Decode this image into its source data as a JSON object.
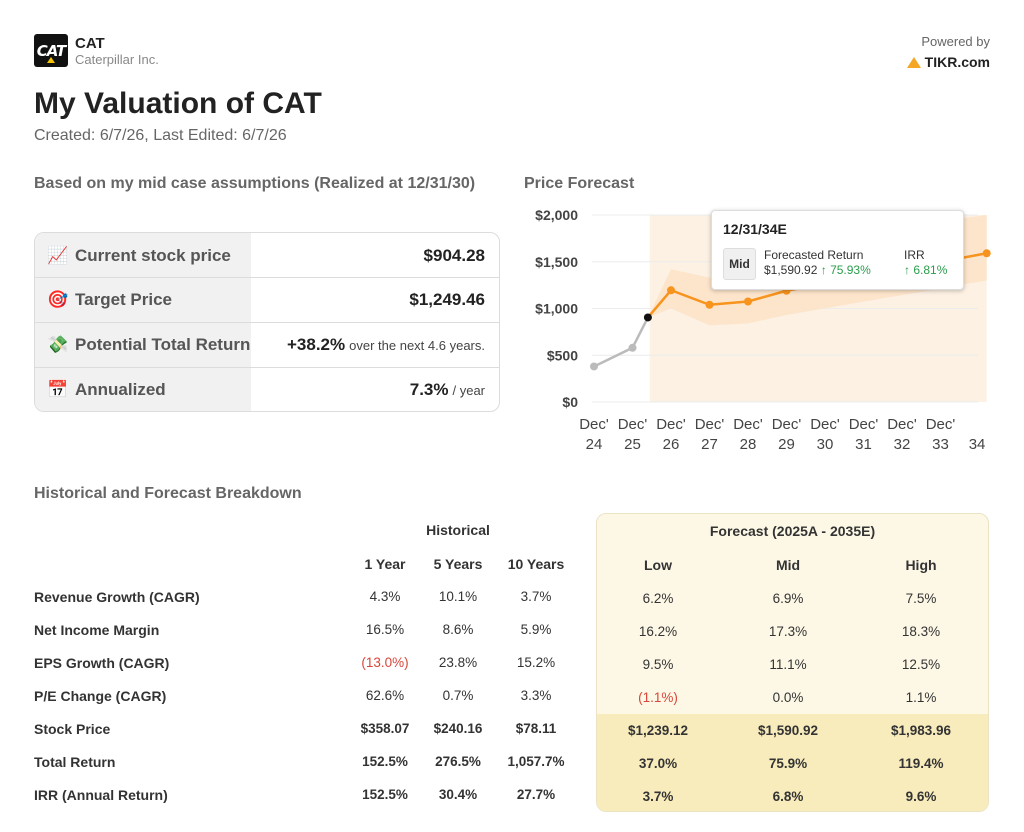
{
  "header": {
    "ticker": "CAT",
    "company": "Caterpillar Inc.",
    "logo_text": "CAT",
    "powered_label": "Powered by",
    "powered_brand": "TIKR.com"
  },
  "page": {
    "title": "My Valuation of CAT",
    "subtitle": "Created: 6/7/26, Last Edited: 6/7/26"
  },
  "summary": {
    "heading": "Based on my mid case assumptions (Realized at 12/31/30)",
    "rows": [
      {
        "icon": "📈",
        "icon_name": "chart-increasing-icon",
        "label": "Current stock price",
        "value": "$904.28",
        "suffix": ""
      },
      {
        "icon": "🎯",
        "icon_name": "target-icon",
        "label": "Target Price",
        "value": "$1,249.46",
        "suffix": ""
      },
      {
        "icon": "💸",
        "icon_name": "money-wings-icon",
        "label": "Potential Total Return",
        "value": "+38.2%",
        "suffix": "over the next 4.6 years."
      },
      {
        "icon": "📅",
        "icon_name": "calendar-icon",
        "label": "Annualized",
        "value": "7.3%",
        "suffix": "/ year"
      }
    ]
  },
  "chart": {
    "heading": "Price Forecast",
    "tooltip": {
      "date": "12/31/34E",
      "badge": "Mid",
      "return_label": "Forecasted Return",
      "return_price": "$1,590.92",
      "return_pct": "↑ 75.93%",
      "irr_label": "IRR",
      "irr_value": "↑ 6.81%"
    },
    "colors": {
      "historical": "#bbbbbb",
      "forecast": "#f7941d",
      "band": "#fde3c8",
      "current_point": "#111111"
    }
  },
  "chart_data": {
    "type": "line",
    "title": "Price Forecast",
    "xlabel": "",
    "ylabel": "",
    "ylim": [
      0,
      2000
    ],
    "y_ticks": [
      "$2,000",
      "$1,500",
      "$1,000",
      "$500",
      "$0"
    ],
    "y_tick_values": [
      2000,
      1500,
      1000,
      500,
      0
    ],
    "x_ticks": [
      [
        "Dec'",
        "24"
      ],
      [
        "Dec'",
        "25"
      ],
      [
        "Dec'",
        "26"
      ],
      [
        "Dec'",
        "27"
      ],
      [
        "Dec'",
        "28"
      ],
      [
        "Dec'",
        "29"
      ],
      [
        "Dec'",
        "30"
      ],
      [
        "Dec'",
        "31"
      ],
      [
        "Dec'",
        "32"
      ],
      [
        "Dec'",
        "33"
      ],
      [
        "",
        "34"
      ]
    ],
    "grid": true,
    "series": [
      {
        "points": [
          [
            0,
            380
          ],
          [
            1,
            580
          ],
          [
            1.4,
            904
          ]
        ]
      },
      {
        "points": [
          [
            1.4,
            904
          ],
          [
            2,
            1195
          ],
          [
            3,
            1040
          ],
          [
            4,
            1075
          ],
          [
            5,
            1190
          ],
          [
            10.2,
            1591
          ]
        ]
      }
    ],
    "band": {
      "upper": [
        [
          1.4,
          904
        ],
        [
          2,
          1420
        ],
        [
          3,
          1330
        ],
        [
          4,
          1400
        ],
        [
          5,
          1520
        ],
        [
          9.5,
          1960
        ],
        [
          10.2,
          2000
        ]
      ],
      "lower": [
        [
          10.2,
          1300
        ],
        [
          9.5,
          1250
        ],
        [
          5,
          930
        ],
        [
          4,
          840
        ],
        [
          3,
          820
        ],
        [
          2,
          1000
        ],
        [
          1.4,
          904
        ]
      ]
    },
    "forecast_start_x": 1.45
  },
  "breakdown": {
    "heading": "Historical and Forecast Breakdown",
    "historical_label": "Historical",
    "historical_cols": [
      "1 Year",
      "5 Years",
      "10 Years"
    ],
    "forecast_label": "Forecast (2025A - 2035E)",
    "forecast_cols": [
      "Low",
      "Mid",
      "High"
    ],
    "rows": [
      {
        "label": "Revenue Growth (CAGR)",
        "hist": [
          "4.3%",
          "10.1%",
          "3.7%"
        ],
        "fc": [
          "6.2%",
          "6.9%",
          "7.5%"
        ]
      },
      {
        "label": "Net Income Margin",
        "hist": [
          "16.5%",
          "8.6%",
          "5.9%"
        ],
        "fc": [
          "16.2%",
          "17.3%",
          "18.3%"
        ]
      },
      {
        "label": "EPS Growth (CAGR)",
        "hist": [
          "(13.0%)",
          "23.8%",
          "15.2%"
        ],
        "fc": [
          "9.5%",
          "11.1%",
          "12.5%"
        ]
      },
      {
        "label": "P/E Change (CAGR)",
        "hist": [
          "62.6%",
          "0.7%",
          "3.3%"
        ],
        "fc": [
          "(1.1%)",
          "0.0%",
          "1.1%"
        ]
      },
      {
        "label": "Stock Price",
        "hist": [
          "$358.07",
          "$240.16",
          "$78.11"
        ],
        "fc": [
          "$1,239.12",
          "$1,590.92",
          "$1,983.96"
        ]
      },
      {
        "label": "Total Return",
        "hist": [
          "152.5%",
          "276.5%",
          "1,057.7%"
        ],
        "fc": [
          "37.0%",
          "75.9%",
          "119.4%"
        ]
      },
      {
        "label": "IRR (Annual Return)",
        "hist": [
          "152.5%",
          "30.4%",
          "27.7%"
        ],
        "fc": [
          "3.7%",
          "6.8%",
          "9.6%"
        ]
      }
    ]
  }
}
